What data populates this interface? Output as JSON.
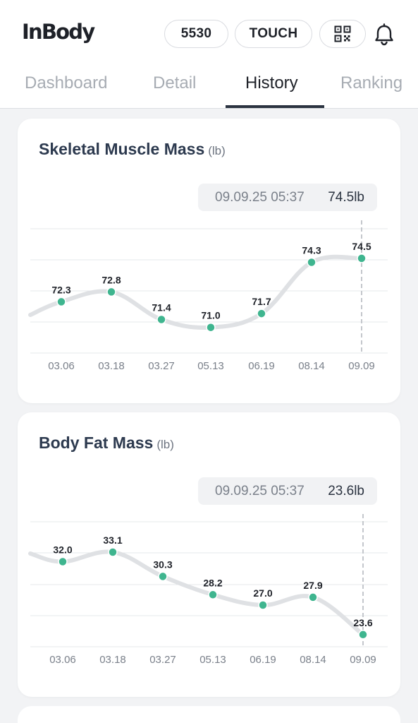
{
  "header": {
    "logo": "InBody",
    "points_label": "5530",
    "touch_label": "TOUCH",
    "qr_icon": "qr-code-icon",
    "bell_icon": "bell-icon"
  },
  "tabs": [
    {
      "label": "Dashboard",
      "active": false
    },
    {
      "label": "Detail",
      "active": false
    },
    {
      "label": "History",
      "active": true
    },
    {
      "label": "Ranking",
      "active": false
    }
  ],
  "cards": [
    {
      "title": "Skeletal Muscle Mass",
      "unit": "(lb)",
      "tooltip": {
        "date": "09.09.25 05:37",
        "value": "74.5lb"
      }
    },
    {
      "title": "Body Fat Mass",
      "unit": "(lb)",
      "tooltip": {
        "date": "09.09.25 05:37",
        "value": "23.6lb"
      }
    }
  ],
  "chart_data": [
    {
      "type": "line",
      "title": "Skeletal Muscle Mass",
      "unit": "(lb)",
      "categories": [
        "03.06",
        "03.18",
        "03.27",
        "05.13",
        "06.19",
        "08.14",
        "09.09"
      ],
      "values": [
        72.3,
        72.8,
        71.4,
        71.0,
        71.7,
        74.3,
        74.5
      ],
      "ylim": [
        69.7,
        76.0
      ],
      "grid": true,
      "highlight_index": 6,
      "colors": {
        "line": "#dfe1e4",
        "point": "#3fb58f",
        "grid": "#e6e8eb",
        "marker": "#c4c7cc"
      }
    },
    {
      "type": "line",
      "title": "Body Fat Mass",
      "unit": "(lb)",
      "categories": [
        "03.06",
        "03.18",
        "03.27",
        "05.13",
        "06.19",
        "08.14",
        "09.09"
      ],
      "values": [
        32.0,
        33.1,
        30.3,
        28.2,
        27.0,
        27.9,
        23.6
      ],
      "ylim": [
        22.2,
        36.6
      ],
      "grid": true,
      "highlight_index": 6,
      "colors": {
        "line": "#dfe1e4",
        "point": "#3fb58f",
        "grid": "#e6e8eb",
        "marker": "#c4c7cc"
      }
    }
  ]
}
